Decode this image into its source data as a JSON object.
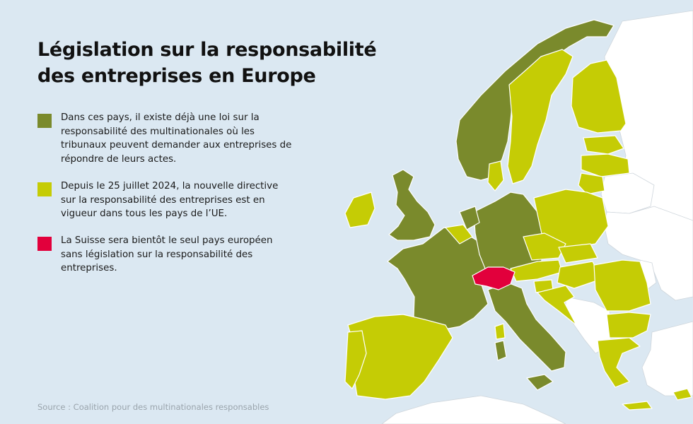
{
  "title_line1": "Législation sur la responsabilité",
  "title_line2": "des entreprises en Europe",
  "legend": [
    {
      "color": "#7a8a2c",
      "text": "Dans ces pays, il existe déjà une loi sur la responsabilité des multinationales où les tribunaux peuvent demander aux entreprises de répondre de leurs actes."
    },
    {
      "color": "#c5cc05",
      "text": "Depuis le 25 juillet 2024, la nouvelle directive sur la responsabilité des entreprises est en vigueur dans tous les pays de l’UE."
    },
    {
      "color": "#e2003c",
      "text": "La Suisse sera bientôt le seul pays européen sans législation sur la responsabilité des entreprises."
    }
  ],
  "source": "Source : Coalition pour des multinationales responsables",
  "colors": {
    "sea": "#dbe8f2",
    "existing_law": "#7a8a2c",
    "eu_directive": "#c5cc05",
    "switzerland": "#e2003c",
    "non_eu": "#ffffff",
    "border": "#ffffff"
  }
}
